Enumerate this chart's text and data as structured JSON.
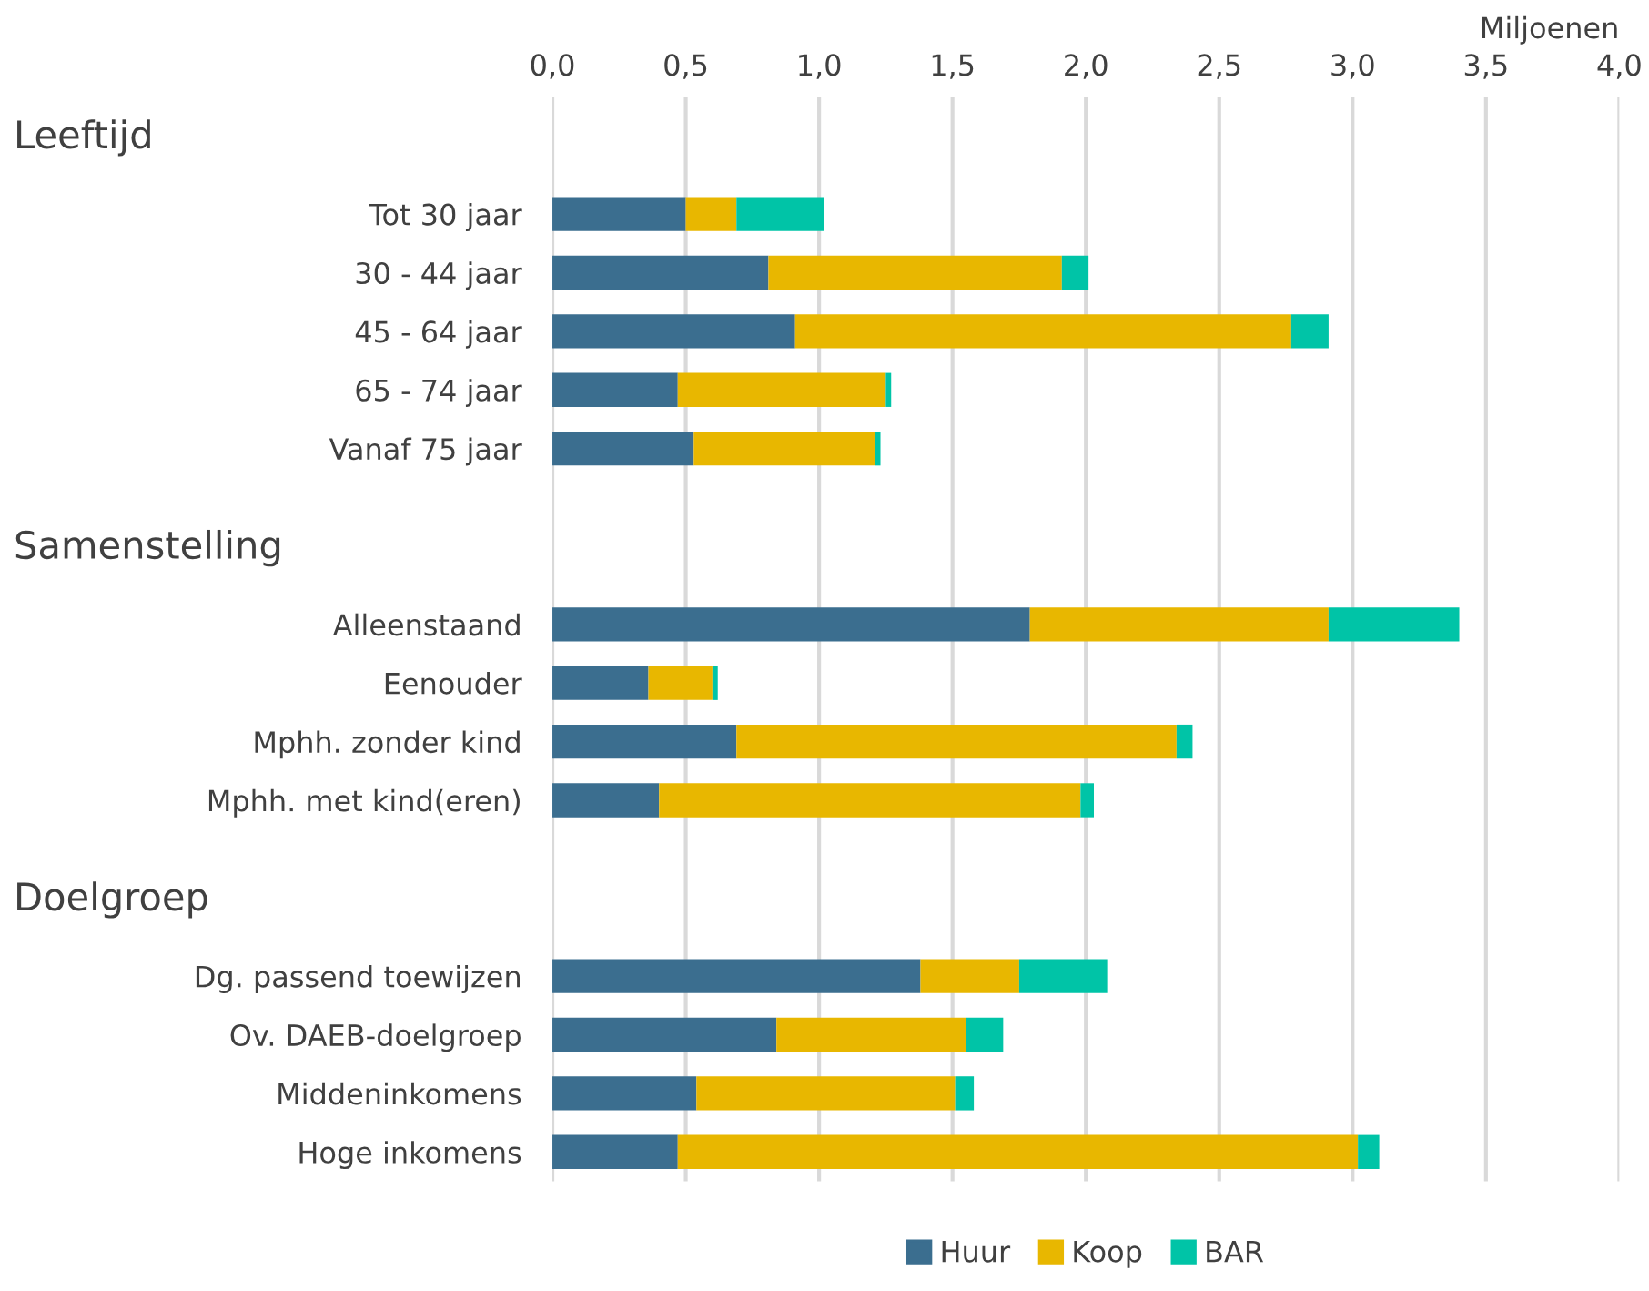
{
  "chart_data": {
    "type": "bar",
    "orientation": "horizontal",
    "stacked": true,
    "xlabel": "Miljoenen",
    "annotations": [
      "Leeftijd",
      "Samenstelling",
      "Doelgroep"
    ],
    "categories": [
      null,
      "Tot 30 jaar",
      "30 - 44 jaar",
      "45 - 64 jaar",
      "65 - 74 jaar",
      "Vanaf 75 jaar",
      null,
      null,
      "Alleenstaand",
      "Eenouder",
      "Mphh. zonder kind",
      "Mphh. met kind(eren)",
      null,
      null,
      "Dg. passend toewijzen",
      "Ov. DAEB-doelgroep",
      "Middeninkomens",
      "Hoge inkomens"
    ],
    "series": [
      {
        "name": "Huur",
        "color": "#3b6e8f",
        "values": [
          null,
          0.5,
          0.81,
          0.91,
          0.47,
          0.53,
          null,
          null,
          1.79,
          0.36,
          0.69,
          0.4,
          null,
          null,
          1.38,
          0.84,
          0.54,
          0.47
        ]
      },
      {
        "name": "Koop",
        "color": "#e8b700",
        "values": [
          null,
          0.19,
          1.1,
          1.86,
          0.78,
          0.68,
          null,
          null,
          1.12,
          0.24,
          1.65,
          1.58,
          null,
          null,
          0.37,
          0.71,
          0.97,
          2.55
        ]
      },
      {
        "name": "BAR",
        "color": "#00c4a7",
        "values": [
          null,
          0.33,
          0.1,
          0.14,
          0.02,
          0.02,
          null,
          null,
          0.49,
          0.02,
          0.06,
          0.05,
          null,
          null,
          0.33,
          0.14,
          0.07,
          0.08
        ]
      }
    ],
    "xlim": [
      0,
      4
    ],
    "xticks": [
      {
        "value": 0,
        "label": "0,0"
      },
      {
        "value": 0.5,
        "label": "0,5"
      },
      {
        "value": 1,
        "label": "1,0"
      },
      {
        "value": 1.5,
        "label": "1,5"
      },
      {
        "value": 2,
        "label": "2,0"
      },
      {
        "value": 2.5,
        "label": "2,5"
      },
      {
        "value": 3,
        "label": "3,0"
      },
      {
        "value": 3.5,
        "label": "3,5"
      },
      {
        "value": 4,
        "label": "4,0"
      }
    ],
    "grid": "x",
    "legend": "bottom"
  }
}
